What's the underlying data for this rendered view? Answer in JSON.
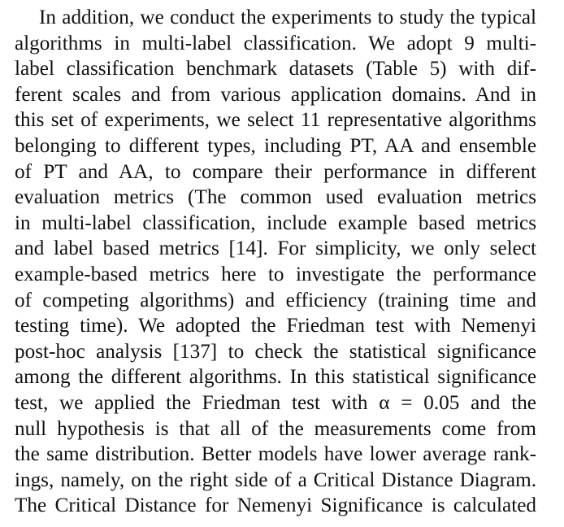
{
  "paragraph": {
    "lines": [
      "In addition, we conduct the experiments to study the typical",
      "algorithms in multi-label classification. We adopt 9 multi-",
      "label classification benchmark datasets (Table 5) with dif-",
      "ferent scales and from various application domains. And in",
      "this set of experiments, we select 11 representative algorithms",
      "belonging to different types, including PT, AA and ensemble",
      "of PT and AA, to compare their performance in different",
      "evaluation metrics (The common used evaluation metrics",
      "in multi-label classification, include example based metrics",
      "and label based metrics [14]. For simplicity, we only select",
      "example-based metrics here to investigate the performance",
      "of competing algorithms) and efficiency (training time and",
      "testing time). We adopted the Friedman test with Nemenyi",
      "post-hoc analysis [137] to check the statistical significance",
      "among the different algorithms. In this statistical significance",
      "test, we applied the Friedman test with α = 0.05 and the",
      "null hypothesis is that all of the measurements come from",
      "the same distribution. Better models have lower average rank-",
      "ings, namely, on the right side of a Critical Distance Diagram.",
      "The Critical Distance for Nemenyi Significance is calculated"
    ]
  }
}
